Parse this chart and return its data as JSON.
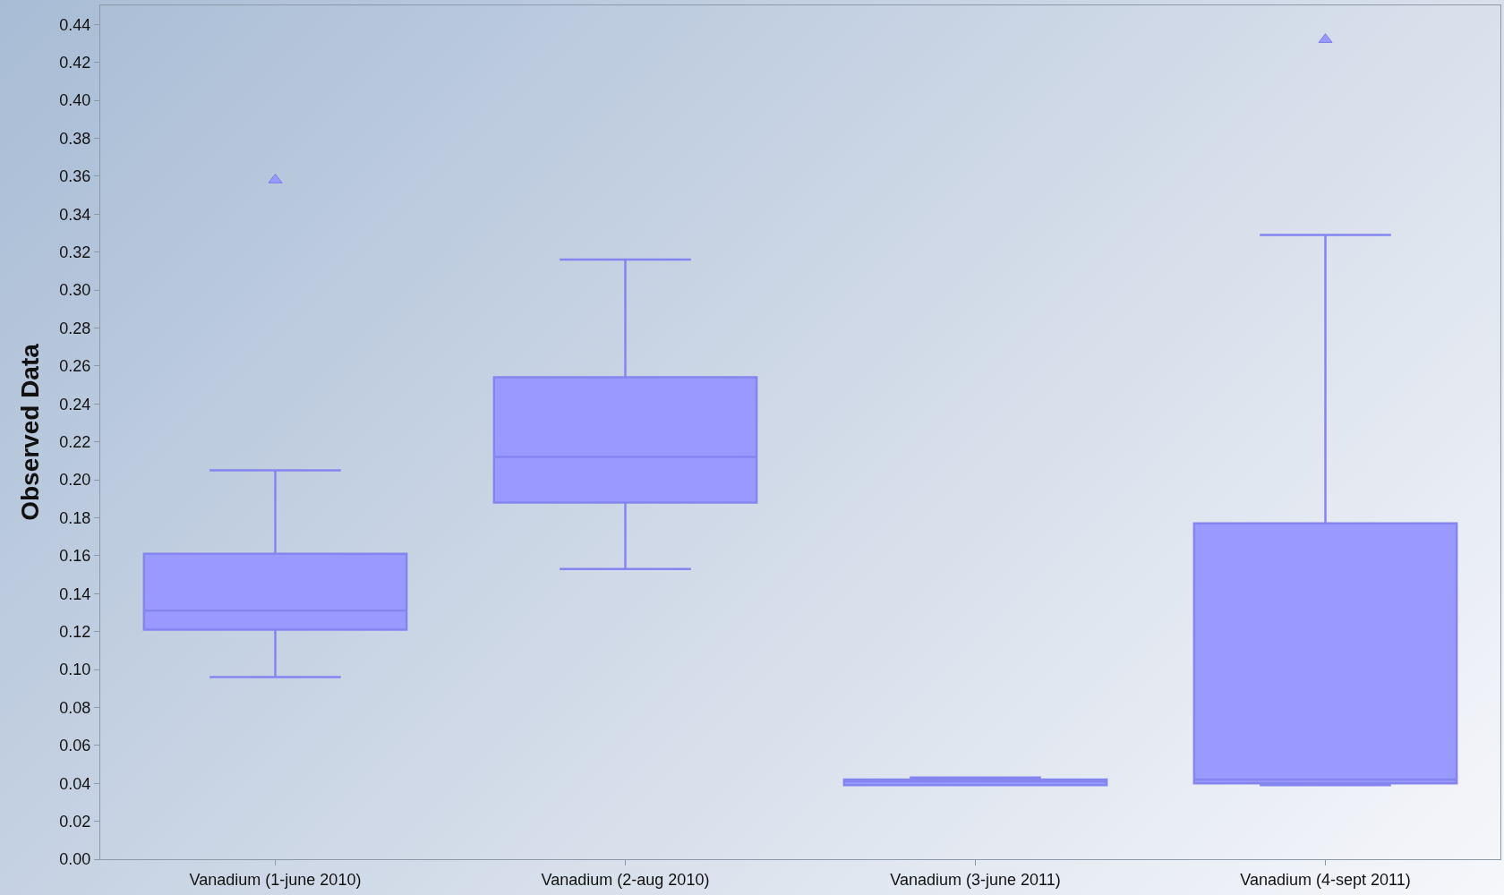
{
  "chart_data": {
    "type": "box",
    "ylabel": "Observed Data",
    "categories": [
      "Vanadium (1-june 2010)",
      "Vanadium (2-aug 2010)",
      "Vanadium (3-june 2011)",
      "Vanadium (4-sept 2011)"
    ],
    "color": "#9999ff",
    "boxes": [
      {
        "low": 0.096,
        "q1": 0.121,
        "median": 0.131,
        "q3": 0.161,
        "high": 0.205,
        "outliers": [
          0.358
        ]
      },
      {
        "low": 0.153,
        "q1": 0.188,
        "median": 0.212,
        "q3": 0.254,
        "high": 0.316
      },
      {
        "low": 0.039,
        "q1": 0.039,
        "median": 0.041,
        "q3": 0.042,
        "high": 0.043
      },
      {
        "low": 0.039,
        "q1": 0.04,
        "median": 0.042,
        "q3": 0.177,
        "high": 0.329,
        "outliers": [
          0.432
        ]
      }
    ],
    "marker": "triangle",
    "ylim": [
      0,
      0.45
    ],
    "yticks": [
      {
        "value": 0,
        "label": "0.00"
      },
      {
        "value": 0.02,
        "label": "0.02"
      },
      {
        "value": 0.04,
        "label": "0.04"
      },
      {
        "value": 0.06,
        "label": "0.06"
      },
      {
        "value": 0.08,
        "label": "0.08"
      },
      {
        "value": 0.1,
        "label": "0.10"
      },
      {
        "value": 0.12,
        "label": "0.12"
      },
      {
        "value": 0.14,
        "label": "0.14"
      },
      {
        "value": 0.16,
        "label": "0.16"
      },
      {
        "value": 0.18,
        "label": "0.18"
      },
      {
        "value": 0.2,
        "label": "0.20"
      },
      {
        "value": 0.22,
        "label": "0.22"
      },
      {
        "value": 0.24,
        "label": "0.24"
      },
      {
        "value": 0.26,
        "label": "0.26"
      },
      {
        "value": 0.28,
        "label": "0.28"
      },
      {
        "value": 0.3,
        "label": "0.30"
      },
      {
        "value": 0.32,
        "label": "0.32"
      },
      {
        "value": 0.34,
        "label": "0.34"
      },
      {
        "value": 0.36,
        "label": "0.36"
      },
      {
        "value": 0.38,
        "label": "0.38"
      },
      {
        "value": 0.4,
        "label": "0.40"
      },
      {
        "value": 0.42,
        "label": "0.42"
      },
      {
        "value": 0.44,
        "label": "0.44"
      }
    ],
    "grid": false
  }
}
